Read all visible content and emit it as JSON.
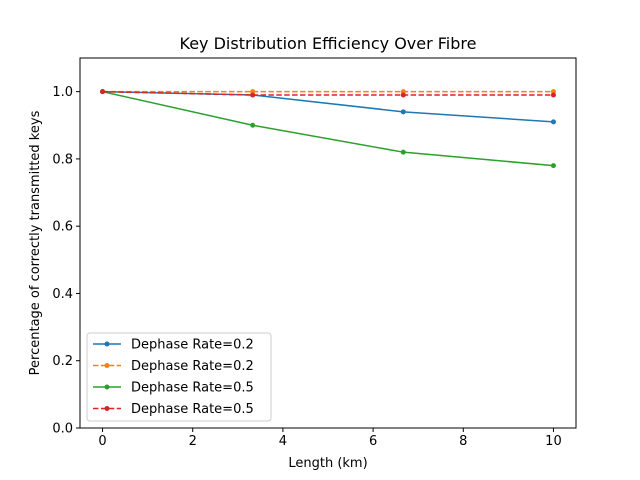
{
  "chart_data": {
    "type": "line",
    "title": "Key Distribution Efficiency Over Fibre",
    "xlabel": "Length (km)",
    "ylabel": "Percentage of correctly transmitted keys",
    "xlim": [
      -0.5,
      10.5
    ],
    "ylim": [
      0.0,
      1.1
    ],
    "xticks": [
      0,
      2,
      4,
      6,
      8,
      10
    ],
    "yticks": [
      0.0,
      0.2,
      0.4,
      0.6,
      0.8,
      1.0
    ],
    "xtick_labels": [
      "0",
      "2",
      "4",
      "6",
      "8",
      "10"
    ],
    "ytick_labels": [
      "0.0",
      "0.2",
      "0.4",
      "0.6",
      "0.8",
      "1.0"
    ],
    "grid": false,
    "legend_position": "lower-left",
    "series": [
      {
        "name": "Dephase Rate=0.2",
        "color": "#1f77b4",
        "dash": "solid",
        "x": [
          0,
          3.33,
          6.67,
          10
        ],
        "y": [
          1.0,
          0.99,
          0.94,
          0.91
        ]
      },
      {
        "name": "Dephase Rate=0.2",
        "color": "#ff7f0e",
        "dash": "dashed",
        "x": [
          0,
          3.33,
          6.67,
          10
        ],
        "y": [
          1.0,
          1.0,
          1.0,
          1.0
        ]
      },
      {
        "name": "Dephase Rate=0.5",
        "color": "#2ca02c",
        "dash": "solid",
        "x": [
          0,
          3.33,
          6.67,
          10
        ],
        "y": [
          1.0,
          0.9,
          0.82,
          0.78
        ]
      },
      {
        "name": "Dephase Rate=0.5",
        "color": "#d62728",
        "dash": "dashed",
        "x": [
          0,
          3.33,
          6.67,
          10
        ],
        "y": [
          1.0,
          0.99,
          0.99,
          0.99
        ]
      }
    ]
  }
}
